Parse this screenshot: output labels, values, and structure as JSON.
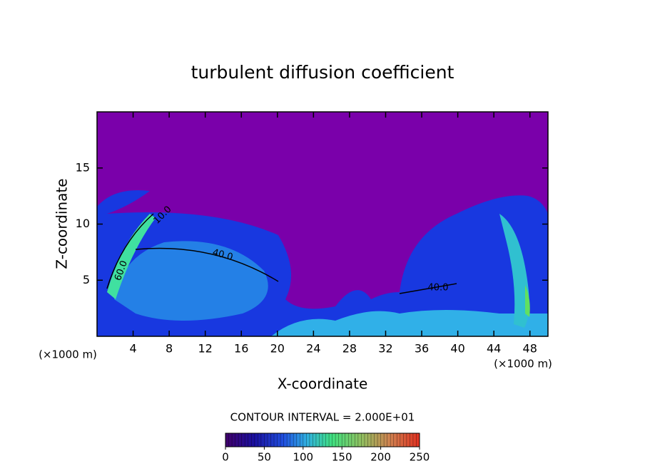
{
  "chart_data": {
    "type": "contour",
    "title": "turbulent diffusion coefficient",
    "x_label": "X-coordinate",
    "y_label": "Z-coordinate",
    "x_unit": "(×1000 m)",
    "xlim": [
      0,
      50
    ],
    "xticks": [
      4,
      8,
      12,
      16,
      20,
      24,
      28,
      32,
      36,
      40,
      44,
      48
    ],
    "ylim": [
      0,
      20
    ],
    "yticks": [
      5,
      10,
      15
    ],
    "contour_labels": [
      {
        "value": 10,
        "label": "10.0"
      },
      {
        "value": 40,
        "label": "40.0"
      },
      {
        "value": 60,
        "label": "60.0"
      },
      {
        "value": 40,
        "label": "40.0"
      }
    ],
    "contour_interval": "CONTOUR INTERVAL = 2.000E+01",
    "colorbar": {
      "clim": [
        0,
        250
      ],
      "ticks": [
        0,
        50,
        100,
        150,
        200,
        250
      ]
    }
  }
}
